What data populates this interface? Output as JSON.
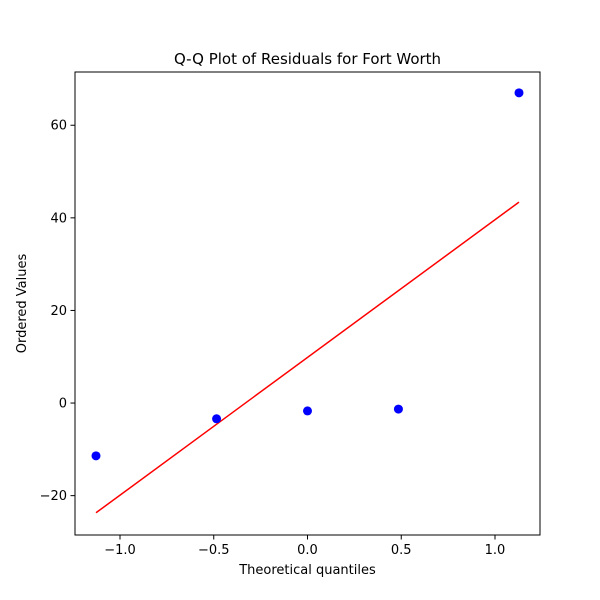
{
  "chart_data": {
    "type": "scatter",
    "title": "Q-Q Plot of Residuals for Fort Worth",
    "xlabel": "Theoretical quantiles",
    "ylabel": "Ordered Values",
    "xlim": [
      -1.24,
      1.24
    ],
    "ylim": [
      -28.5,
      71.5
    ],
    "xticks": [
      -1.0,
      -0.5,
      0.0,
      0.5,
      1.0
    ],
    "xtick_labels": [
      "−1.0",
      "−0.5",
      "0.0",
      "0.5",
      "1.0"
    ],
    "yticks": [
      -20,
      0,
      20,
      40,
      60
    ],
    "ytick_labels": [
      "−20",
      "0",
      "20",
      "40",
      "60"
    ],
    "grid": false,
    "series": [
      {
        "kind": "points",
        "color": "#0000ff",
        "x": [
          -1.128,
          -0.485,
          0.0,
          0.485,
          1.128
        ],
        "y": [
          -11.4,
          -3.4,
          -1.7,
          -1.3,
          67.0
        ]
      },
      {
        "kind": "fit-line",
        "color": "#ff0000",
        "x": [
          -1.128,
          1.128
        ],
        "y": [
          -23.7,
          43.4
        ]
      }
    ]
  }
}
